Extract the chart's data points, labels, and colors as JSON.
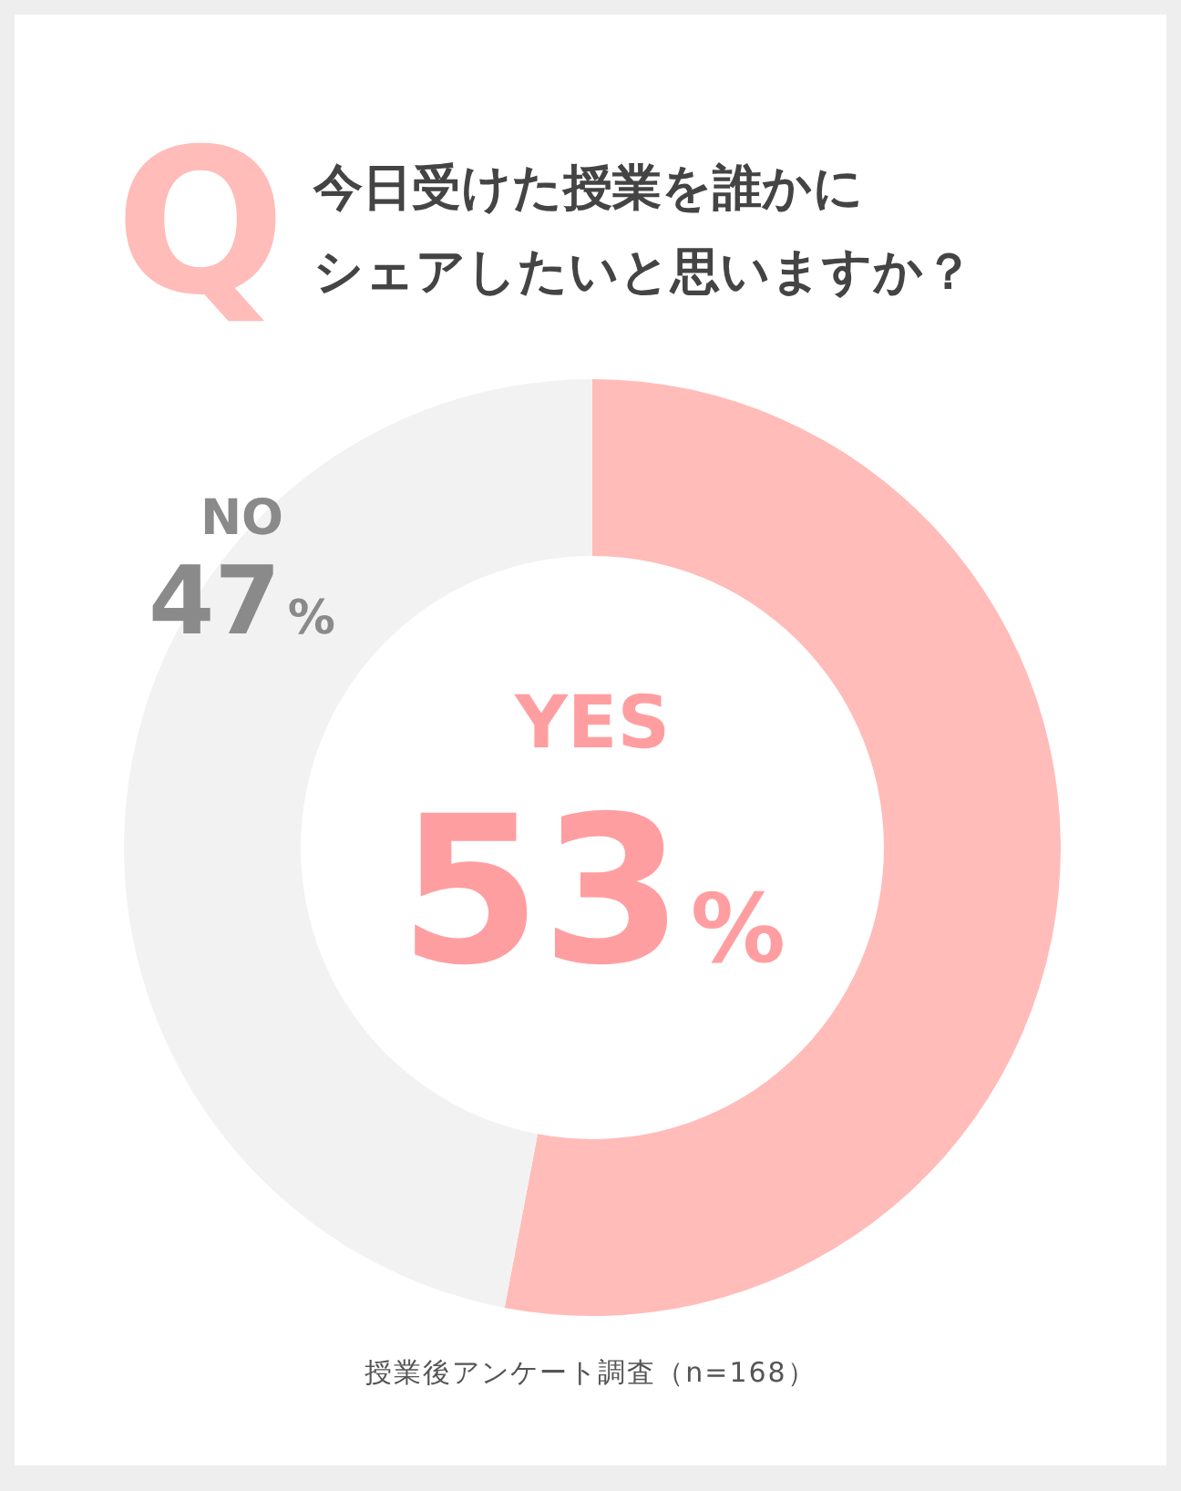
{
  "chart_data": {
    "type": "donut",
    "title": "今日受けた授業を誰かに",
    "subtitle": "シェアしたいと思いますか？",
    "categories": [
      "YES",
      "NO"
    ],
    "values": [
      53,
      47
    ],
    "colors": [
      "#ffbcb9",
      "#f2f2f2"
    ],
    "value_labels": [
      "53%",
      "47%"
    ],
    "annotations": [
      "Q",
      "授業後アンケート調査（n=168）"
    ]
  }
}
